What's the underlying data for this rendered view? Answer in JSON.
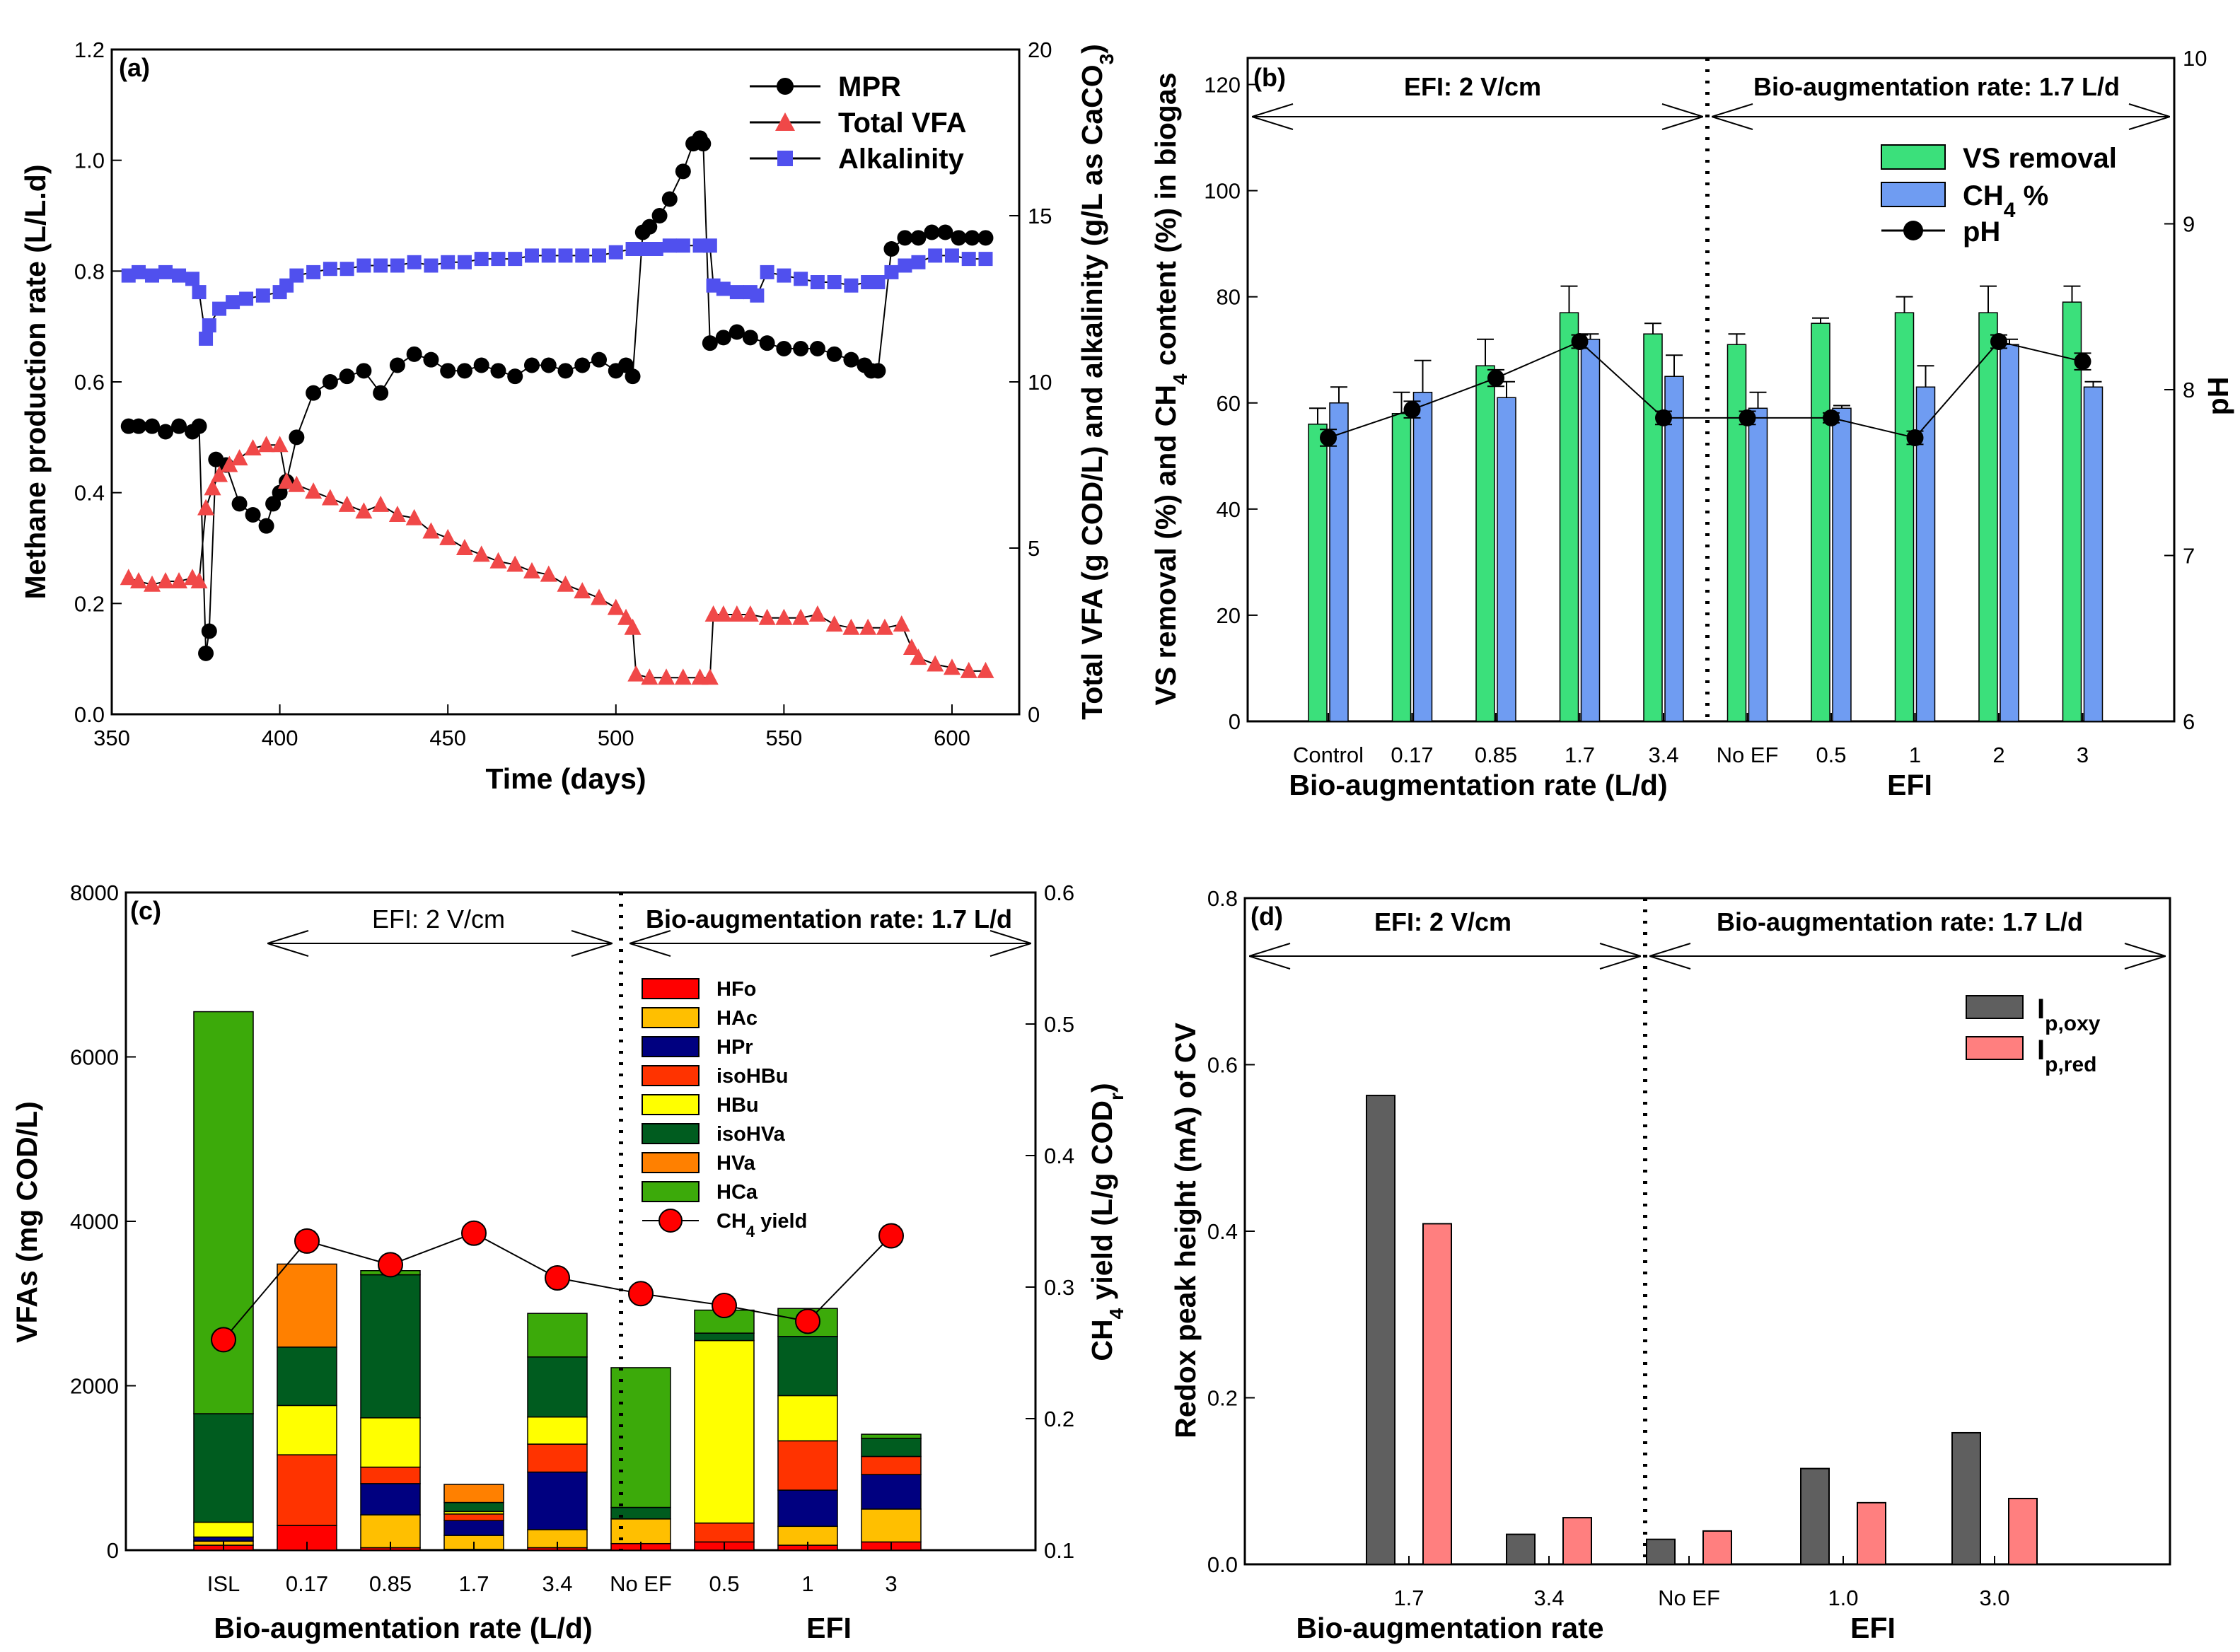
{
  "chart_data": [
    {
      "panel": "(a)",
      "type": "line",
      "xlabel": "Time (days)",
      "ylabel": "Methane production rate (L/L.d)",
      "y2label": "Total VFA (g COD/L) and alkalinity (g/L as CaCO3)",
      "y2label_main": "Total VFA (g COD/L) and alkalinity (g/L as CaCO",
      "y2label_sub": "3",
      "y2label_end": ")",
      "xlim": [
        350,
        620
      ],
      "ylim": [
        0,
        1.2
      ],
      "y2lim": [
        0,
        20
      ],
      "xticks": [
        "350",
        "400",
        "450",
        "500",
        "550",
        "600"
      ],
      "yticks": [
        "0.0",
        "0.2",
        "0.4",
        "0.6",
        "0.8",
        "1.0",
        "1.2"
      ],
      "y2ticks": [
        "0",
        "5",
        "10",
        "15",
        "20"
      ],
      "series": [
        {
          "name": "MPR",
          "axis": "left",
          "color": "#000000",
          "marker": "circle",
          "x": [
            355,
            358,
            362,
            366,
            370,
            374,
            376,
            378,
            379,
            381,
            384,
            388,
            392,
            396,
            398,
            400,
            402,
            405,
            410,
            415,
            420,
            425,
            430,
            435,
            440,
            445,
            450,
            455,
            460,
            465,
            470,
            475,
            480,
            485,
            490,
            495,
            500,
            503,
            505,
            508,
            510,
            513,
            516,
            520,
            523,
            525,
            526,
            528,
            532,
            536,
            540,
            545,
            550,
            555,
            560,
            565,
            570,
            574,
            576,
            578,
            582,
            586,
            590,
            594,
            598,
            602,
            606,
            610
          ],
          "y": [
            0.52,
            0.52,
            0.52,
            0.51,
            0.52,
            0.51,
            0.52,
            0.11,
            0.15,
            0.46,
            0.45,
            0.38,
            0.36,
            0.34,
            0.38,
            0.4,
            0.42,
            0.5,
            0.58,
            0.6,
            0.61,
            0.62,
            0.58,
            0.63,
            0.65,
            0.64,
            0.62,
            0.62,
            0.63,
            0.62,
            0.61,
            0.63,
            0.63,
            0.62,
            0.63,
            0.64,
            0.62,
            0.63,
            0.61,
            0.87,
            0.88,
            0.9,
            0.93,
            0.98,
            1.03,
            1.04,
            1.03,
            0.67,
            0.68,
            0.69,
            0.68,
            0.67,
            0.66,
            0.66,
            0.66,
            0.65,
            0.64,
            0.63,
            0.62,
            0.62,
            0.84,
            0.86,
            0.86,
            0.87,
            0.87,
            0.86,
            0.86,
            0.86
          ]
        },
        {
          "name": "Total VFA",
          "axis": "right",
          "color": "#f04848",
          "marker": "triangle",
          "x": [
            355,
            358,
            362,
            366,
            370,
            374,
            376,
            378,
            380,
            382,
            385,
            388,
            392,
            396,
            400,
            402,
            405,
            410,
            415,
            420,
            425,
            430,
            435,
            440,
            445,
            450,
            455,
            460,
            465,
            470,
            475,
            480,
            485,
            490,
            495,
            500,
            503,
            505,
            506,
            510,
            515,
            520,
            525,
            528,
            529,
            532,
            536,
            540,
            545,
            550,
            555,
            560,
            565,
            570,
            575,
            580,
            585,
            588,
            590,
            595,
            600,
            605,
            610
          ],
          "y": [
            4.1,
            4.0,
            3.9,
            4.0,
            4.0,
            4.1,
            4.0,
            6.2,
            6.8,
            7.2,
            7.5,
            7.7,
            8.0,
            8.1,
            8.1,
            7.0,
            6.9,
            6.7,
            6.5,
            6.3,
            6.1,
            6.3,
            6.0,
            5.9,
            5.5,
            5.3,
            5.0,
            4.8,
            4.6,
            4.5,
            4.3,
            4.2,
            3.9,
            3.7,
            3.5,
            3.2,
            2.9,
            2.6,
            1.2,
            1.1,
            1.1,
            1.1,
            1.1,
            1.1,
            3.0,
            3.0,
            3.0,
            3.0,
            2.9,
            2.9,
            2.9,
            3.0,
            2.7,
            2.6,
            2.6,
            2.6,
            2.7,
            2.0,
            1.7,
            1.5,
            1.4,
            1.3,
            1.3
          ]
        },
        {
          "name": "Alkalinity",
          "axis": "right",
          "color": "#5050ee",
          "marker": "square",
          "x": [
            355,
            358,
            362,
            366,
            370,
            374,
            376,
            378,
            379,
            382,
            386,
            390,
            395,
            400,
            402,
            405,
            410,
            415,
            420,
            425,
            430,
            435,
            440,
            445,
            450,
            455,
            460,
            465,
            470,
            475,
            480,
            485,
            490,
            495,
            500,
            505,
            508,
            512,
            516,
            520,
            525,
            528,
            529,
            532,
            536,
            540,
            542,
            545,
            550,
            555,
            560,
            565,
            570,
            575,
            578,
            582,
            586,
            590,
            595,
            600,
            605,
            610
          ],
          "y": [
            13.2,
            13.3,
            13.2,
            13.3,
            13.2,
            13.1,
            12.7,
            11.3,
            11.7,
            12.2,
            12.4,
            12.5,
            12.6,
            12.7,
            12.9,
            13.2,
            13.3,
            13.4,
            13.4,
            13.5,
            13.5,
            13.5,
            13.6,
            13.5,
            13.6,
            13.6,
            13.7,
            13.7,
            13.7,
            13.8,
            13.8,
            13.8,
            13.8,
            13.8,
            13.9,
            14.0,
            14.0,
            14.0,
            14.1,
            14.1,
            14.1,
            14.1,
            12.9,
            12.8,
            12.7,
            12.7,
            12.6,
            13.3,
            13.2,
            13.1,
            13.0,
            13.0,
            12.9,
            13.0,
            13.0,
            13.3,
            13.5,
            13.6,
            13.8,
            13.8,
            13.7,
            13.7
          ]
        }
      ]
    },
    {
      "panel": "(b)",
      "type": "bar",
      "categories": [
        "Control",
        "0.17",
        "0.85",
        "1.7",
        "3.4",
        "No EF",
        "0.5",
        "1",
        "2",
        "3"
      ],
      "xlabel_left": "Bio-augmentation rate (L/d)",
      "xlabel_right": "EFI",
      "ylabel": "VS removal (%) and CH4 content (%) in biogas",
      "ylabel_pre": "VS removal (%) and CH",
      "ylabel_sub": "4",
      "ylabel_post": " content (%) in biogas",
      "y2label": "pH",
      "ylim": [
        0,
        125
      ],
      "y2lim": [
        6,
        10
      ],
      "yticks": [
        "0",
        "20",
        "40",
        "60",
        "80",
        "100",
        "120"
      ],
      "y2ticks": [
        "6",
        "7",
        "8",
        "9",
        "10"
      ],
      "annotation_left": "EFI: 2 V/cm",
      "annotation_right": "Bio-augmentation rate: 1.7 L/d",
      "series": [
        {
          "name": "VS removal",
          "color": "#3be07b",
          "values": [
            56,
            58,
            67,
            77,
            73,
            71,
            75,
            77,
            77,
            79
          ],
          "errors": [
            3,
            4,
            5,
            5,
            2,
            2,
            1,
            3,
            5,
            3
          ]
        },
        {
          "name": "CH4 %",
          "label_main": "CH",
          "label_sub": "4",
          "label_end": " %",
          "color": "#6f9cf2",
          "values": [
            60,
            62,
            61,
            72,
            65,
            59,
            59,
            63,
            71,
            63
          ],
          "errors": [
            3,
            6,
            3,
            1,
            4,
            3,
            0.5,
            4,
            1,
            1
          ]
        },
        {
          "name": "pH",
          "axis": "right",
          "color": "#000000",
          "values": [
            7.71,
            7.88,
            8.07,
            8.29,
            7.83,
            7.83,
            7.83,
            7.71,
            8.29,
            8.17
          ],
          "errors": [
            0.05,
            0.05,
            0.05,
            0.04,
            0.04,
            0.04,
            0.03,
            0.04,
            0.04,
            0.05
          ]
        }
      ]
    },
    {
      "panel": "(c)",
      "type": "bar",
      "stacked": true,
      "categories": [
        "ISL",
        "0.17",
        "0.85",
        "1.7",
        "3.4",
        "No EF",
        "0.5",
        "1",
        "3"
      ],
      "xlabel_left": "Bio-augmentation rate (L/d)",
      "xlabel_right": "EFI",
      "ylabel": "VFAs (mg COD/L)",
      "y2label": "CH4 yield (L/g CODr)",
      "y2label_a": "CH",
      "y2label_s1": "4",
      "y2label_b": " yield (L/g COD",
      "y2label_s2": "r",
      "y2label_c": ")",
      "ylim": [
        0,
        8000
      ],
      "y2lim": [
        0.1,
        0.6
      ],
      "yticks": [
        "0",
        "2000",
        "4000",
        "6000",
        "8000"
      ],
      "y2ticks": [
        "0.1",
        "0.2",
        "0.3",
        "0.4",
        "0.5",
        "0.6"
      ],
      "annotation_left": "EFI: 2 V/cm",
      "annotation_right": "Bio-augmentation rate: 1.7 L/d",
      "series": [
        {
          "name": "HFo",
          "color": "#ff0000",
          "values": [
            60,
            300,
            30,
            10,
            30,
            80,
            100,
            60,
            100
          ]
        },
        {
          "name": "HAc",
          "color": "#ffbf00",
          "values": [
            50,
            0,
            400,
            170,
            220,
            300,
            0,
            230,
            400
          ]
        },
        {
          "name": "HPr",
          "color": "#000080",
          "values": [
            50,
            0,
            380,
            180,
            700,
            0,
            0,
            440,
            420
          ]
        },
        {
          "name": "isoHBu",
          "color": "#ff3300",
          "values": [
            0,
            860,
            200,
            80,
            340,
            0,
            230,
            600,
            220
          ]
        },
        {
          "name": "HBu",
          "color": "#ffff00",
          "values": [
            180,
            600,
            600,
            30,
            330,
            0,
            2220,
            550,
            0
          ]
        },
        {
          "name": "isoHVa",
          "color": "#005c1f",
          "values": [
            1320,
            710,
            1740,
            110,
            730,
            140,
            90,
            720,
            220
          ]
        },
        {
          "name": "HVa",
          "color": "#ff8000",
          "values": [
            0,
            1010,
            0,
            220,
            0,
            0,
            0,
            0,
            0
          ]
        },
        {
          "name": "HCa",
          "color": "#3caa0a",
          "values": [
            4890,
            0,
            50,
            0,
            530,
            1700,
            280,
            340,
            50
          ]
        },
        {
          "name": "CH4 yield",
          "label_main": "CH",
          "label_sub": "4",
          "label_end": " yield",
          "axis": "right",
          "color": "#ff0000",
          "values": [
            0.26,
            0.335,
            0.317,
            0.341,
            0.307,
            0.295,
            0.286,
            0.274,
            0.339
          ],
          "errors": [
            0.005,
            0.007,
            0.005,
            0.003,
            0.004,
            0.003,
            0.003,
            0.004,
            0.007
          ]
        }
      ]
    },
    {
      "panel": "(d)",
      "type": "bar",
      "categories": [
        "1.7",
        "3.4",
        "No EF",
        "1.0",
        "3.0"
      ],
      "xlabel_left": "Bio-augmentation rate",
      "xlabel_right": "EFI",
      "ylabel": "Redox peak height (mA) of CV",
      "ylim": [
        0,
        0.8
      ],
      "yticks": [
        "0.0",
        "0.2",
        "0.4",
        "0.6",
        "0.8"
      ],
      "annotation_left": "EFI: 2 V/cm",
      "annotation_right": "Bio-augmentation rate: 1.7 L/d",
      "series": [
        {
          "name": "Ip,oxy",
          "label_main": "I",
          "label_sub": "p,oxy",
          "color": "#5f5f5f",
          "values": [
            0.563,
            0.036,
            0.03,
            0.115,
            0.158
          ]
        },
        {
          "name": "Ip,red",
          "label_main": "I",
          "label_sub": "p,red",
          "color": "#ff7f7f",
          "values": [
            0.409,
            0.056,
            0.04,
            0.074,
            0.079
          ]
        }
      ]
    }
  ]
}
